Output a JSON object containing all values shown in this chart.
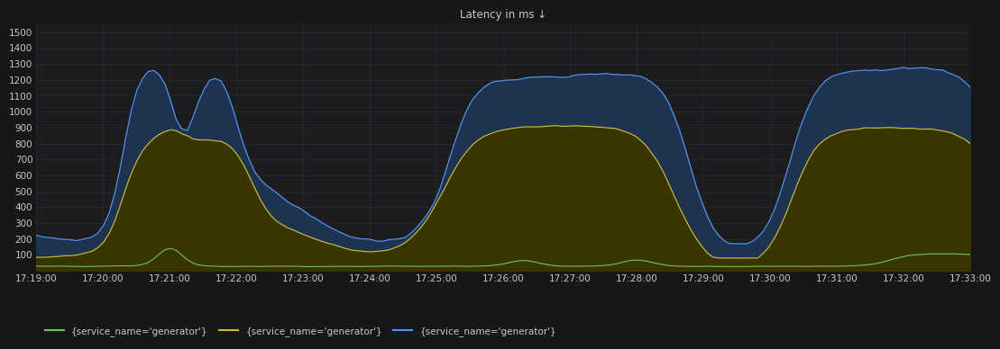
{
  "title": "Latency in ms ↓",
  "background_color": "#161719",
  "plot_bg_color": "#1a1c1e",
  "grid_color": "#2c2e32",
  "text_color": "#c8c8c8",
  "ylim": [
    0,
    1550
  ],
  "yticks": [
    100,
    200,
    300,
    400,
    500,
    600,
    700,
    800,
    900,
    1000,
    1100,
    1200,
    1300,
    1400,
    1500
  ],
  "x_labels": [
    "17:19:00",
    "17:20:00",
    "17:21:00",
    "17:22:00",
    "17:23:00",
    "17:24:00",
    "17:25:00",
    "17:26:00",
    "17:27:00",
    "17:28:00",
    "17:29:00",
    "17:30:00",
    "17:31:00",
    "17:32:00",
    "17:33:00"
  ],
  "legend": [
    {
      "label": "{service_name='generator'}",
      "color": "#73bf69"
    },
    {
      "label": "{service_name='generator'}",
      "color": "#cabc40"
    },
    {
      "label": "{service_name='generator'}",
      "color": "#5794f2"
    }
  ],
  "p50_color": "#73bf69",
  "p90_color": "#cabc40",
  "p99_color": "#5794f2",
  "fill_p99_color": "#1e3350",
  "fill_p90_color": "#383500"
}
